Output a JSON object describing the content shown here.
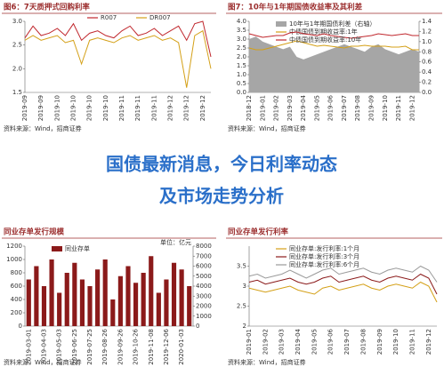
{
  "chart_data": [
    {
      "type": "line",
      "title": "图6：7天质押式回购利率",
      "legend": "top",
      "categories": [
        "2019-09",
        null,
        "2019-09",
        null,
        "2019-10",
        null,
        "2019-10",
        null,
        "2019-10",
        null,
        "2019-10",
        null,
        "2019-11",
        null,
        "2019-11",
        null,
        "2019-11",
        null,
        "2019-12",
        null,
        "2019-12",
        null,
        "2019-12",
        null
      ],
      "series": [
        {
          "name": "R007",
          "color": "#c0272d",
          "values": [
            2.65,
            2.9,
            2.7,
            2.75,
            2.85,
            2.7,
            2.95,
            2.6,
            2.75,
            2.8,
            2.7,
            2.65,
            2.8,
            2.9,
            2.7,
            2.75,
            2.85,
            2.7,
            2.8,
            2.9,
            2.6,
            2.95,
            3.0,
            2.25
          ]
        },
        {
          "name": "DR007",
          "color": "#d4a017",
          "values": [
            2.6,
            2.7,
            2.6,
            2.65,
            2.7,
            2.55,
            2.6,
            2.1,
            2.6,
            2.65,
            2.6,
            2.55,
            2.65,
            2.7,
            2.6,
            2.65,
            2.7,
            2.6,
            2.65,
            2.55,
            1.6,
            2.7,
            2.8,
            2.0
          ]
        }
      ],
      "ylim": [
        1.5,
        3.0
      ],
      "yticks": [
        1.5,
        {
          "value": 2,
          "label": "2.0"
        },
        2.5,
        {
          "value": 3,
          "label": "3.0"
        }
      ],
      "source": "资料来源：Wind，招商证券"
    },
    {
      "type": "line",
      "title": "图7：10年与1年期国债收益率及其利差",
      "legend": "stack",
      "categories": [
        "2018-12",
        null,
        "2019-01",
        null,
        "2019-02",
        null,
        "2019-03",
        null,
        "2019-04",
        null,
        "2019-05",
        null,
        "2019-06",
        null,
        "2019-07",
        null,
        "2019-08",
        null,
        "2019-09",
        null,
        "2019-10",
        null,
        "2019-11",
        null,
        "2019-12",
        null
      ],
      "series": [
        {
          "name": "10年与1年期国债利差（右轴）",
          "type": "area",
          "axis": "y2",
          "color": "#a6a6a6",
          "values": [
            1.05,
            1.1,
            1.0,
            0.95,
            0.9,
            0.85,
            0.9,
            0.7,
            0.65,
            0.7,
            0.75,
            0.8,
            0.85,
            0.9,
            0.95,
            0.9,
            0.85,
            0.8,
            0.9,
            0.95,
            0.85,
            0.8,
            0.75,
            0.8,
            0.85,
            0.8
          ]
        },
        {
          "name": "中债国债到期收益率:1年",
          "color": "#d4a017",
          "values": [
            2.5,
            2.4,
            2.4,
            2.5,
            2.6,
            2.7,
            2.8,
            2.9,
            2.8,
            2.7,
            2.6,
            2.65,
            2.6,
            2.55,
            2.5,
            2.6,
            2.6,
            2.65,
            2.6,
            2.6,
            2.6,
            2.55,
            2.55,
            2.6,
            2.4,
            2.4
          ]
        },
        {
          "name": "中债国债到期收益率:10年",
          "color": "#c0272d",
          "values": [
            3.3,
            3.2,
            3.1,
            3.15,
            3.2,
            3.2,
            3.35,
            3.4,
            3.3,
            3.25,
            3.2,
            3.3,
            3.2,
            3.15,
            3.1,
            3.05,
            3.1,
            3.15,
            3.2,
            3.3,
            3.25,
            3.2,
            3.25,
            3.3,
            3.2,
            3.2
          ]
        }
      ],
      "ylim": [
        0,
        4
      ],
      "yticks": [
        {
          "value": 0,
          "label": "0.0"
        },
        0.5,
        {
          "value": 1,
          "label": "1.0"
        },
        1.5,
        {
          "value": 2,
          "label": "2.0"
        },
        2.5,
        {
          "value": 3,
          "label": "3.0"
        },
        3.5,
        {
          "value": 4,
          "label": "4.0"
        }
      ],
      "y2lim": [
        0,
        1.4
      ],
      "y2ticks": [
        {
          "value": 0,
          "label": "0.0"
        },
        0.2,
        0.4,
        0.6,
        0.8,
        {
          "value": 1,
          "label": "1.0"
        },
        1.2,
        1.4
      ],
      "source": "资料来源：Wind，招商证券"
    },
    {
      "type": "bar",
      "title": "同业存单发行规模",
      "unit": "单位：亿元",
      "legend": "stack",
      "categories": [
        "2019-03-01",
        null,
        "2019-04-03",
        null,
        "2019-05-03",
        null,
        "2019-06-25",
        null,
        "2019-07-25",
        null,
        "2019-08-26",
        null,
        "2019-09-26",
        null,
        "2019-10-26",
        null,
        "2019-11-08",
        null,
        "2019-12-06",
        null,
        "2020-01-03",
        null
      ],
      "series": [
        {
          "name": "同业存单",
          "color": "#8b1a1a",
          "values": [
            700,
            900,
            600,
            1000,
            500,
            800,
            950,
            700,
            600,
            850,
            1000,
            400,
            750,
            900,
            650,
            800,
            1050,
            500,
            700,
            950,
            850,
            600
          ]
        }
      ],
      "ylim": [
        0,
        1200
      ],
      "yticks": [
        0,
        200,
        400,
        600,
        800,
        1000,
        1200
      ],
      "y2lim": [
        0,
        8000
      ],
      "y2ticks": [
        0,
        1000,
        2000,
        3000,
        4000,
        5000,
        6000,
        7000,
        8000
      ],
      "source": "资料来源：Wind，招商证券"
    },
    {
      "type": "line",
      "title": "同业存单发行利率",
      "legend": "stack",
      "categories": [
        "2019-01",
        null,
        "2019-02",
        null,
        "2019-03",
        null,
        "2019-04",
        null,
        "2019-05",
        null,
        "2019-06",
        null,
        "2019-07",
        null,
        "2019-08",
        null,
        "2019-09",
        null,
        "2019-10",
        null,
        "2019-11",
        null,
        "2019-12",
        null
      ],
      "series": [
        {
          "name": "同业存单:发行利率:1个月",
          "color": "#d4a017",
          "values": [
            2.95,
            2.9,
            2.85,
            2.9,
            2.95,
            3.0,
            2.9,
            2.85,
            2.8,
            2.95,
            3.0,
            2.9,
            2.95,
            3.0,
            3.05,
            2.95,
            2.9,
            3.0,
            3.05,
            3.0,
            2.95,
            3.1,
            3.0,
            2.6
          ]
        },
        {
          "name": "同业存单:发行利率:3个月",
          "color": "#8b1a1a",
          "values": [
            3.1,
            3.15,
            3.05,
            3.1,
            3.15,
            3.2,
            3.1,
            3.05,
            3.1,
            3.2,
            3.25,
            3.1,
            3.15,
            3.2,
            3.25,
            3.15,
            3.1,
            3.2,
            3.25,
            3.2,
            3.15,
            3.3,
            3.2,
            2.8
          ]
        },
        {
          "name": "同业存单:发行利率:6个月",
          "color": "#9a9a9a",
          "values": [
            3.25,
            3.3,
            3.2,
            3.25,
            3.3,
            3.4,
            3.3,
            3.2,
            3.3,
            3.4,
            3.45,
            3.3,
            3.35,
            3.4,
            3.45,
            3.35,
            3.3,
            3.4,
            3.45,
            3.4,
            3.35,
            3.5,
            3.4,
            3.1
          ]
        }
      ],
      "ylim": [
        2,
        4
      ],
      "yticks": [
        2,
        2.5,
        3,
        3.5
      ],
      "source": "资料来源：Wind，招商证券"
    }
  ],
  "banner": {
    "lines": [
      "国债最新消息，今日利率动态",
      "及市场走势分析"
    ]
  }
}
